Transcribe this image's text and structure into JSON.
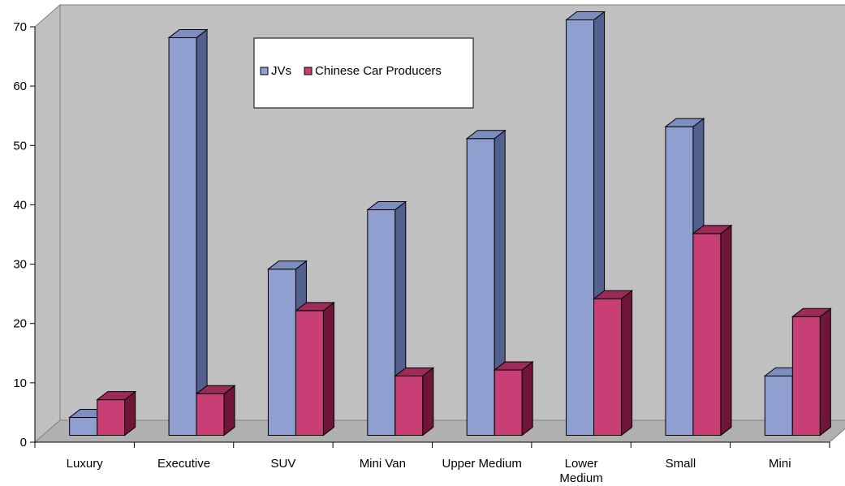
{
  "chart_data": {
    "type": "bar",
    "style": "3d-clustered-column",
    "categories": [
      "Luxury",
      "Executive",
      "SUV",
      "Mini Van",
      "Upper Medium",
      "Lower Medium",
      "Small",
      "Mini"
    ],
    "category_lines": [
      [
        "Luxury"
      ],
      [
        "Executive"
      ],
      [
        "SUV"
      ],
      [
        "Mini Van"
      ],
      [
        "Upper Medium"
      ],
      [
        "Lower",
        "Medium"
      ],
      [
        "Small"
      ],
      [
        "Mini"
      ]
    ],
    "series": [
      {
        "name": "JVs",
        "values": [
          3,
          67,
          28,
          38,
          50,
          70,
          52,
          10
        ],
        "color": "#8f9fd0",
        "side_color": "#52608f",
        "top_color": "#7d8dc0"
      },
      {
        "name": "Chinese Car Producers",
        "values": [
          6,
          7,
          21,
          10,
          11,
          23,
          34,
          20
        ],
        "color": "#c83f76",
        "side_color": "#6e1538",
        "top_color": "#9c2b57"
      }
    ],
    "title": "",
    "xlabel": "",
    "ylabel": "",
    "ylim": [
      0,
      70
    ],
    "yticks": [
      0,
      10,
      20,
      30,
      40,
      50,
      60,
      70
    ],
    "legend": {
      "position": "top-center",
      "entries": [
        "JVs",
        "Chinese Car Producers"
      ]
    },
    "grid": false,
    "wall_color": "#c0c0c0"
  }
}
